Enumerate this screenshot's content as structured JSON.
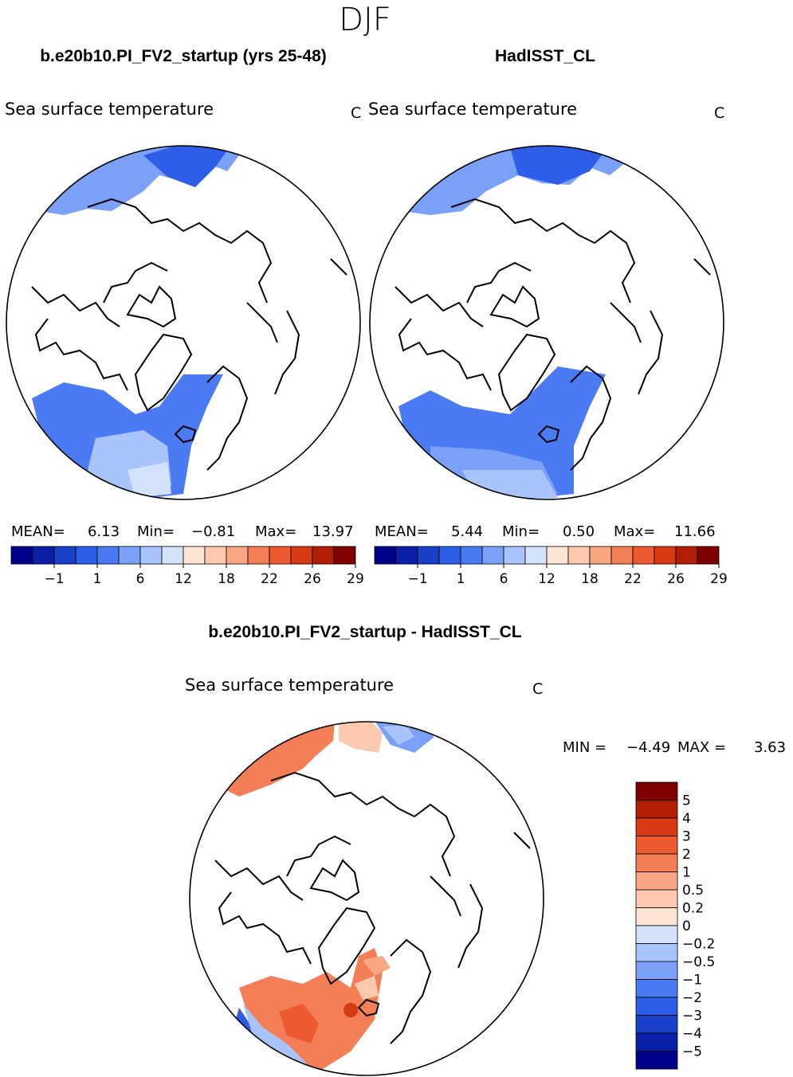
{
  "season": "DJF",
  "panels": [
    {
      "case_title": "b.e20b10.PI_FV2_startup (yrs 25-48)",
      "variable": "Sea surface temperature",
      "units": "C",
      "stats": {
        "mean_label": "MEAN=",
        "mean": "6.13",
        "min_label": "Min=",
        "min": "−0.81",
        "max_label": "Max=",
        "max": "13.97"
      }
    },
    {
      "case_title": "HadISST_CL",
      "variable": "Sea surface temperature",
      "units": "C",
      "stats": {
        "mean_label": "MEAN=",
        "mean": "5.44",
        "min_label": "Min=",
        "min": "0.50",
        "max_label": "Max=",
        "max": "11.66"
      }
    }
  ],
  "sst_colorbar": {
    "colors": [
      "#00008b",
      "#0b20a8",
      "#1a3fc8",
      "#2e5ee8",
      "#4b7bf2",
      "#7ba0f7",
      "#a9c4fa",
      "#d3e3fc",
      "#fde5d6",
      "#fcc8ae",
      "#f8a684",
      "#f47f56",
      "#ec5a30",
      "#d73a12",
      "#b01e06",
      "#800000"
    ],
    "tick_labels": [
      "−1",
      "1",
      "6",
      "12",
      "18",
      "22",
      "26",
      "29"
    ]
  },
  "difference": {
    "title": "b.e20b10.PI_FV2_startup - HadISST_CL",
    "variable": "Sea surface temperature",
    "units": "C",
    "min_label": "MIN =",
    "min": "−4.49",
    "max_label": "MAX =",
    "max": "3.63"
  },
  "diff_colorbar": {
    "colors_top_to_bottom": [
      "#800000",
      "#b01e06",
      "#d73a12",
      "#ec5a30",
      "#f47f56",
      "#f8a684",
      "#fcc8ae",
      "#fde5d6",
      "#d3e3fc",
      "#a9c4fa",
      "#7ba0f7",
      "#4b7bf2",
      "#2e5ee8",
      "#1a3fc8",
      "#0b20a8",
      "#00008b"
    ],
    "labels": [
      "5",
      "4",
      "3",
      "2",
      "1",
      "0.5",
      "0.2",
      "0",
      "−0.2",
      "−0.5",
      "−1",
      "−2",
      "−3",
      "−4",
      "−5"
    ]
  }
}
